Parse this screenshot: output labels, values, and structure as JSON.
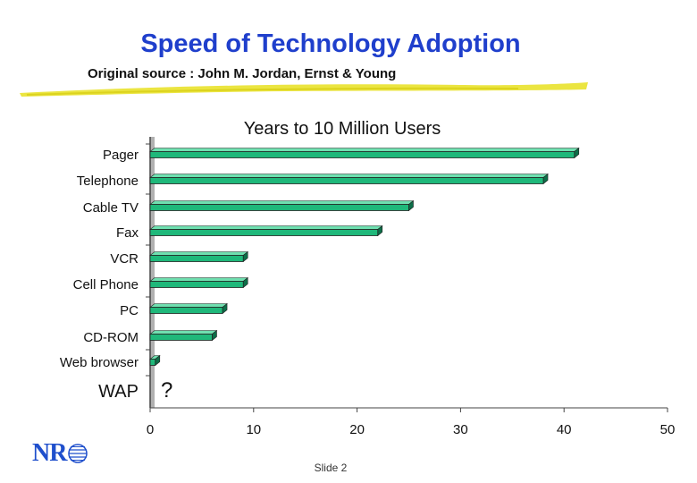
{
  "slide": {
    "title": "Speed of Technology Adoption",
    "subtitle": "Original source : John M. Jordan, Ernst & Young",
    "slide_number": "Slide 2",
    "logo_text": "NR",
    "accent_color": "#1f3fcc",
    "highlight_color": "#e8e020"
  },
  "chart_data": {
    "type": "bar",
    "orientation": "horizontal",
    "title": "Years to 10 Million Users",
    "categories": [
      "Pager",
      "Telephone",
      "Cable TV",
      "Fax",
      "VCR",
      "Cell Phone",
      "PC",
      "CD-ROM",
      "Web browser",
      "WAP"
    ],
    "values": [
      41,
      38,
      25,
      22,
      9,
      9,
      7,
      6,
      0.5,
      null
    ],
    "annotations": [
      {
        "category": "WAP",
        "text": "?"
      }
    ],
    "xlim": [
      0,
      50
    ],
    "xticks": [
      0,
      10,
      20,
      30,
      40,
      50
    ],
    "xlabel": "",
    "ylabel": "",
    "bar_color": "#1fb87a",
    "bar_top_color": "#6fe0b0",
    "bar_side_color": "#0d6e48",
    "legend": "none",
    "grid": false
  }
}
